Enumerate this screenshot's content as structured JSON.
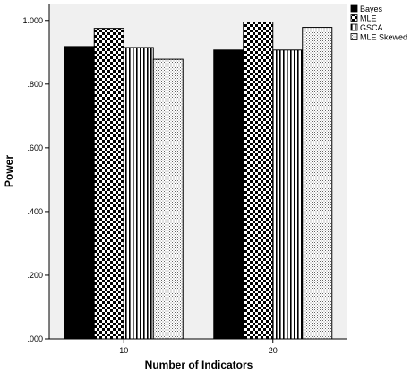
{
  "chart_data": {
    "type": "bar",
    "xlabel": "Number of Indicators",
    "ylabel": "Power",
    "categories": [
      "10",
      "20"
    ],
    "series": [
      {
        "name": "Bayes",
        "values": [
          0.918,
          0.907
        ]
      },
      {
        "name": "MLE",
        "values": [
          0.975,
          0.995
        ]
      },
      {
        "name": "GSCA",
        "values": [
          0.915,
          0.907
        ]
      },
      {
        "name": "MLE Skewed",
        "values": [
          0.878,
          0.978
        ]
      }
    ],
    "ylim": [
      0,
      1.05
    ],
    "yticks": [
      0,
      0.2,
      0.4,
      0.6,
      0.8,
      1.0
    ],
    "ytick_labels": [
      ".000",
      ".200",
      ".400",
      ".600",
      ".800",
      "1.000"
    ],
    "legend_position": "top-right",
    "grid": false,
    "plot_background": "#f0f0f0",
    "patterns": [
      "solid-black",
      "checkerboard",
      "vertical-lines",
      "dots"
    ]
  }
}
